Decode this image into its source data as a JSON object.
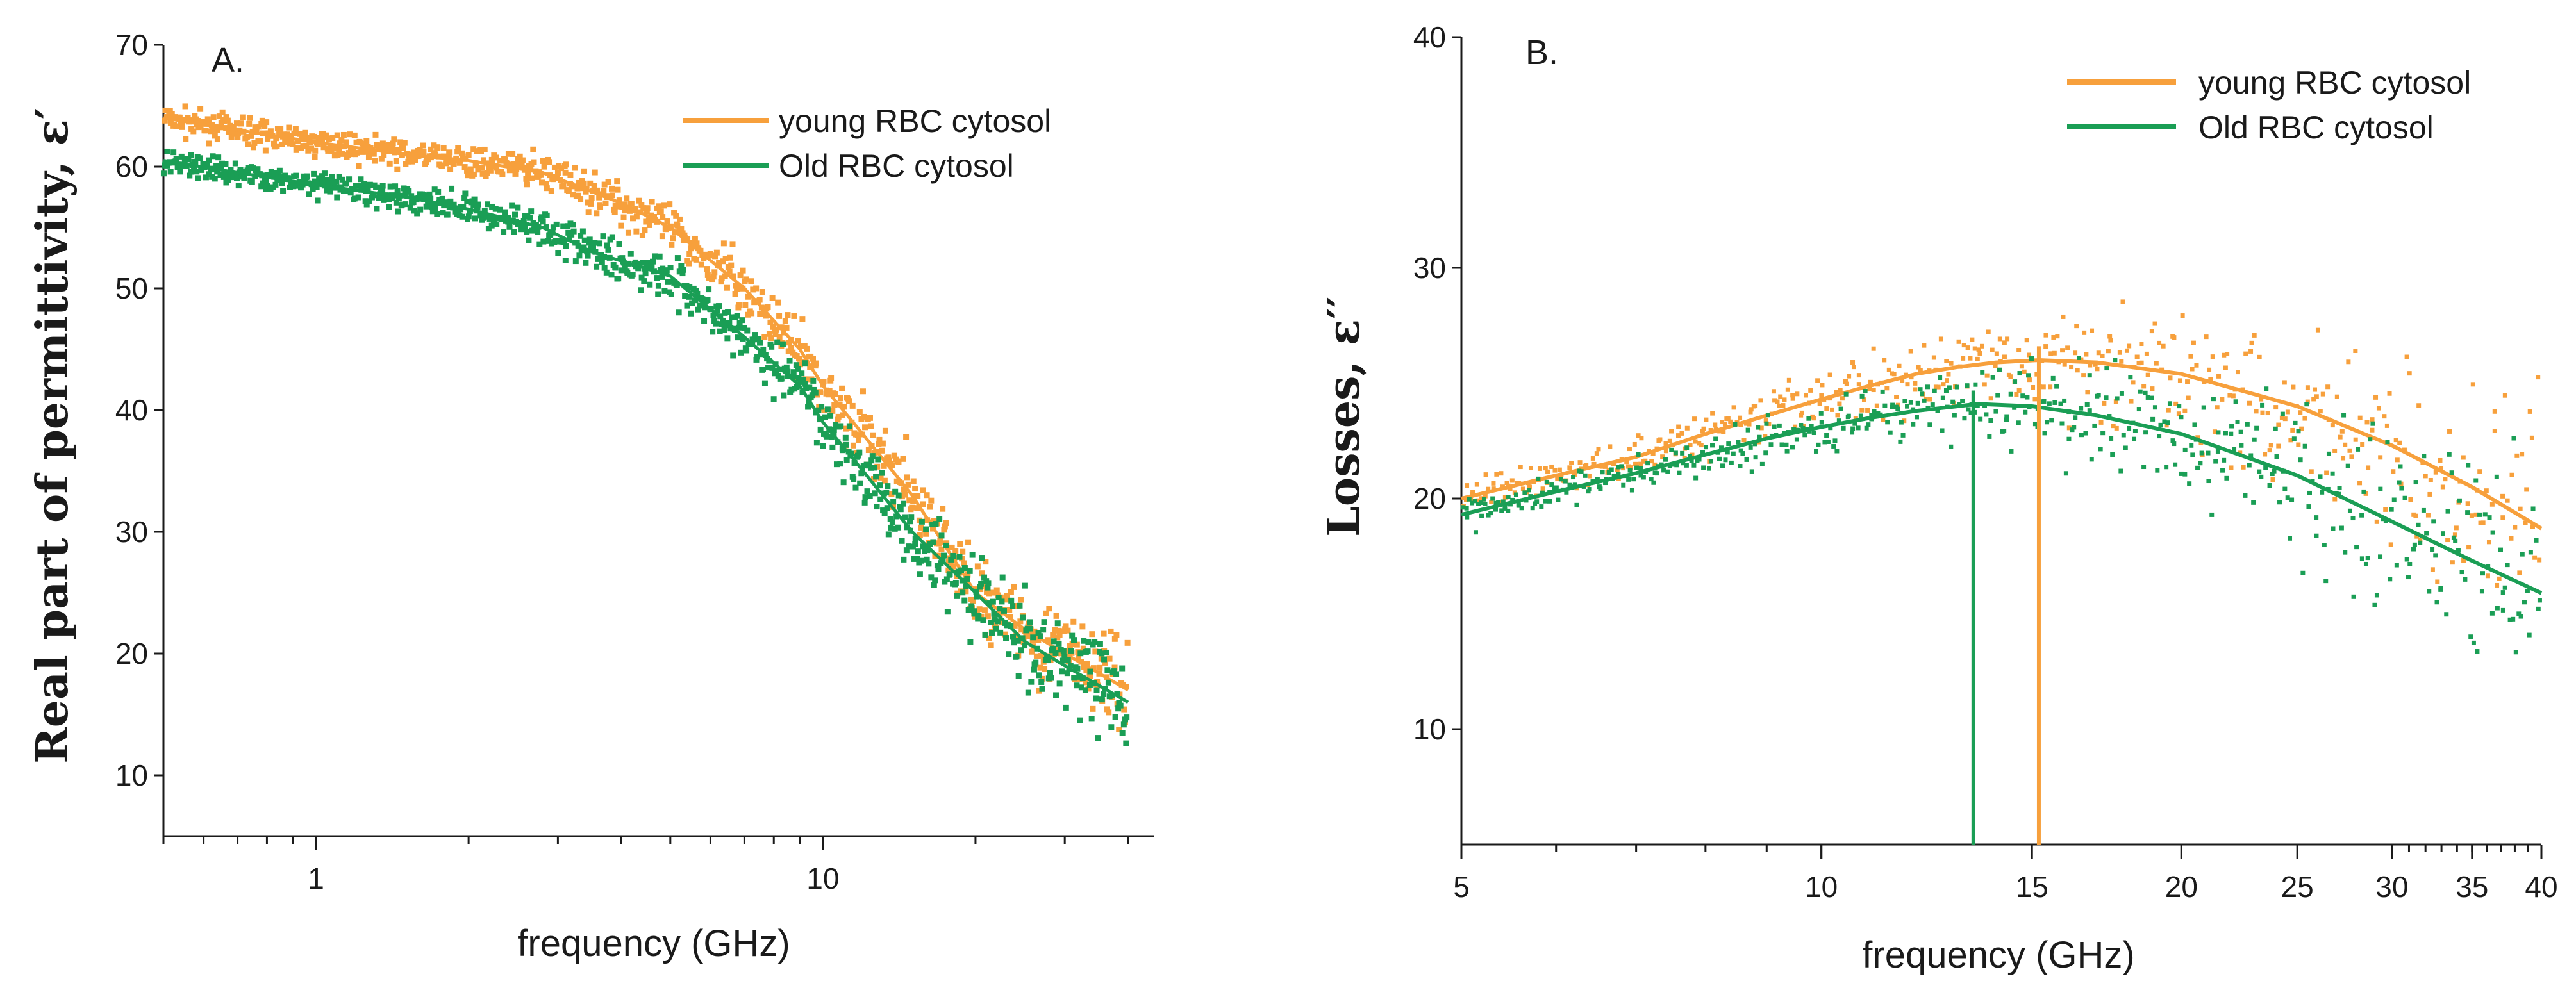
{
  "colors": {
    "young": "#f7a03c",
    "old": "#1a9e55",
    "axis": "#1a1a1a"
  },
  "chart_data": [
    {
      "type": "scatter",
      "panel_label": "A.",
      "xlabel": "frequency (GHz)",
      "ylabel": "Real part of permittivity, ε′",
      "xscale": "log",
      "xlim": [
        0.5,
        40
      ],
      "ylim": [
        5,
        70
      ],
      "yticks": [
        "10",
        "20",
        "30",
        "40",
        "50",
        "60",
        "70"
      ],
      "xticks": [
        "1",
        "10"
      ],
      "legend_position": "top-right",
      "series": [
        {
          "name": "young RBC cytosol",
          "color_key": "young",
          "x": [
            0.5,
            0.7,
            1,
            1.5,
            2,
            2.8,
            4,
            5,
            7,
            9,
            10,
            12,
            15,
            20,
            25,
            30,
            40
          ],
          "y": [
            64,
            63,
            62,
            61,
            60.5,
            59.5,
            57,
            55,
            50,
            45,
            42,
            38,
            33,
            25,
            22,
            20,
            17
          ]
        },
        {
          "name": "Old RBC cytosol",
          "color_key": "old",
          "x": [
            0.5,
            0.7,
            1,
            1.5,
            2,
            2.8,
            3.5,
            5,
            7,
            9,
            10,
            12,
            15,
            20,
            25,
            30,
            40
          ],
          "y": [
            60.5,
            59.5,
            58.5,
            57.5,
            56.5,
            55,
            53,
            51,
            46,
            42,
            39,
            35,
            30,
            25,
            21,
            19,
            16
          ]
        }
      ]
    },
    {
      "type": "scatter",
      "panel_label": "B.",
      "xlabel": "frequency (GHz)",
      "ylabel": "Losses, ε′′",
      "xscale": "log",
      "xlim": [
        5,
        40
      ],
      "ylim": [
        5,
        40
      ],
      "yticks": [
        "10",
        "20",
        "30",
        "40"
      ],
      "xticks": [
        "5",
        "10",
        "15",
        "20",
        "25",
        "30",
        "35",
        "40"
      ],
      "legend_position": "top-right",
      "series": [
        {
          "name": "young RBC cytosol",
          "color_key": "young",
          "x": [
            5,
            6,
            7,
            8,
            9,
            10,
            11,
            12,
            13,
            14,
            15.2,
            17,
            20,
            25,
            30,
            35,
            40
          ],
          "y": [
            20,
            21,
            21.8,
            22.8,
            23.6,
            24.3,
            24.9,
            25.4,
            25.7,
            25.9,
            26,
            25.9,
            25.4,
            24,
            22.3,
            20.5,
            18.7
          ]
        },
        {
          "name": "Old RBC cytosol",
          "color_key": "old",
          "x": [
            5,
            6,
            7,
            8,
            9,
            10,
            11,
            12,
            13,
            13.5,
            15,
            17,
            20,
            25,
            30,
            35,
            40
          ],
          "y": [
            19.3,
            20.3,
            21.1,
            21.9,
            22.6,
            23.1,
            23.5,
            23.8,
            24,
            24.1,
            24,
            23.6,
            22.8,
            21,
            19,
            17.3,
            15.9
          ]
        }
      ],
      "peak_markers": [
        {
          "series": "young RBC cytosol",
          "x": 15.2,
          "color_key": "young"
        },
        {
          "series": "Old RBC cytosol",
          "x": 13.4,
          "color_key": "old"
        }
      ]
    }
  ]
}
